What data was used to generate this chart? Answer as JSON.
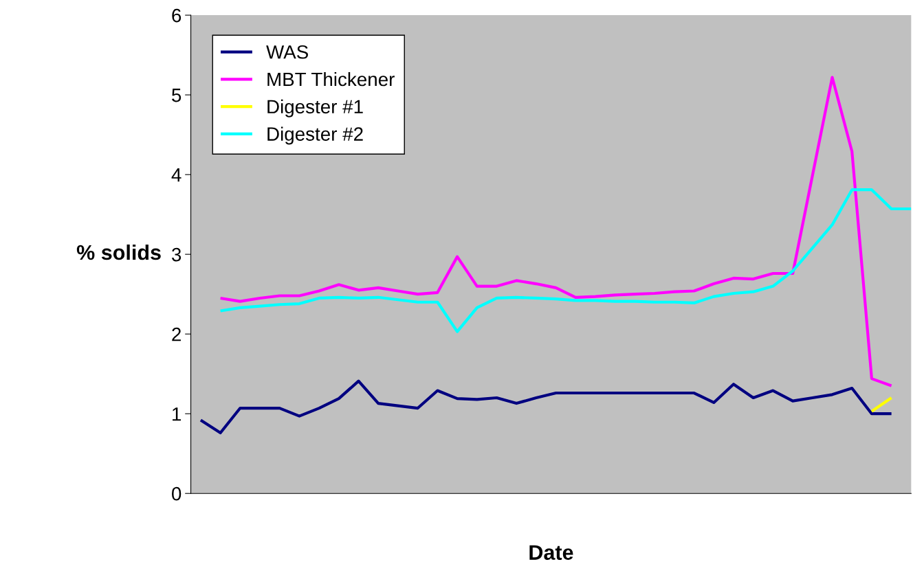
{
  "chart_data": {
    "type": "line",
    "xlabel": "Date",
    "ylabel": "% solids",
    "categories": [
      null,
      null,
      null,
      null,
      null,
      null,
      null,
      null,
      null,
      null,
      null,
      null,
      null,
      null,
      null,
      null,
      null,
      null,
      null,
      null,
      null,
      null,
      null,
      null,
      null,
      null,
      null,
      null,
      null,
      null,
      null,
      null,
      null,
      null,
      null,
      null,
      null
    ],
    "series": [
      {
        "name": "WAS",
        "color": "#000080",
        "values": [
          0.92,
          0.76,
          1.07,
          1.07,
          1.07,
          0.97,
          1.07,
          1.19,
          1.41,
          1.13,
          1.1,
          1.07,
          1.29,
          1.19,
          1.18,
          1.2,
          1.13,
          1.2,
          1.26,
          1.26,
          1.26,
          1.26,
          1.26,
          1.26,
          1.26,
          1.26,
          1.14,
          1.37,
          1.2,
          1.29,
          1.16,
          1.2,
          1.24,
          1.32,
          1.0,
          1.0,
          null
        ]
      },
      {
        "name": "MBT Thickener",
        "color": "#ff00ff",
        "values": [
          null,
          2.45,
          2.41,
          2.45,
          2.48,
          2.48,
          2.54,
          2.62,
          2.55,
          2.58,
          2.54,
          2.5,
          2.52,
          2.97,
          2.6,
          2.6,
          2.67,
          2.63,
          2.58,
          2.46,
          2.47,
          2.49,
          2.5,
          2.51,
          2.53,
          2.54,
          2.63,
          2.7,
          2.69,
          2.76,
          2.76,
          3.99,
          5.22,
          4.29,
          1.44,
          1.35,
          null
        ]
      },
      {
        "name": "Digester #1",
        "color": "#ffff00",
        "values": [
          null,
          null,
          null,
          null,
          null,
          null,
          null,
          null,
          null,
          null,
          null,
          null,
          null,
          null,
          null,
          null,
          null,
          null,
          null,
          null,
          null,
          null,
          null,
          null,
          null,
          null,
          null,
          null,
          null,
          null,
          null,
          null,
          null,
          null,
          1.03,
          1.2,
          null
        ]
      },
      {
        "name": "Digester #2",
        "color": "#00ffff",
        "values": [
          null,
          2.29,
          2.33,
          2.35,
          2.37,
          2.38,
          2.45,
          2.46,
          2.45,
          2.46,
          2.43,
          2.4,
          2.4,
          2.03,
          2.33,
          2.45,
          2.46,
          2.45,
          2.44,
          2.42,
          2.42,
          2.41,
          2.41,
          2.4,
          2.4,
          2.39,
          2.47,
          2.51,
          2.53,
          2.6,
          2.79,
          3.08,
          3.37,
          3.81,
          3.81,
          3.57,
          3.57
        ]
      }
    ],
    "ylim": [
      0,
      6
    ],
    "yticks": [
      0,
      1,
      2,
      3,
      4,
      5,
      6
    ],
    "legend": "top left",
    "grid": false
  }
}
